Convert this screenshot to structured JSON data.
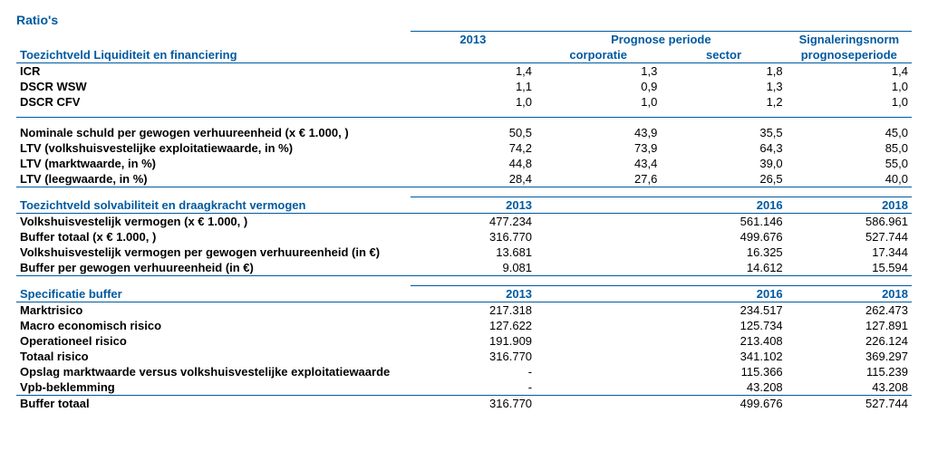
{
  "titles": {
    "ratios": "Ratio's",
    "section1": "Toezichtveld Liquiditeit en financiering",
    "section2": "Toezichtveld solvabiliteit en draagkracht vermogen",
    "section3": "Specificatie buffer"
  },
  "headers": {
    "y2013": "2013",
    "prognose": "Prognose periode",
    "corporatie": "corporatie",
    "sector": "sector",
    "signalering": "Signaleringsnorm",
    "prognoseperiode": "prognoseperiode",
    "y2016": "2016",
    "y2018": "2018"
  },
  "s1rows": [
    {
      "label": "ICR",
      "c1": "1,4",
      "c2": "1,3",
      "c3": "1,8",
      "c4": "1,4"
    },
    {
      "label": "DSCR WSW",
      "c1": "1,1",
      "c2": "0,9",
      "c3": "1,3",
      "c4": "1,0"
    },
    {
      "label": "DSCR CFV",
      "c1": "1,0",
      "c2": "1,0",
      "c3": "1,2",
      "c4": "1,0"
    }
  ],
  "s1rows2": [
    {
      "label": "Nominale schuld per gewogen verhuureenheid (x € 1.000, )",
      "c1": "50,5",
      "c2": "43,9",
      "c3": "35,5",
      "c4": "45,0"
    },
    {
      "label": "LTV (volkshuisvestelijke exploitatiewaarde, in %)",
      "c1": "74,2",
      "c2": "73,9",
      "c3": "64,3",
      "c4": "85,0"
    },
    {
      "label": "LTV (marktwaarde, in %)",
      "c1": "44,8",
      "c2": "43,4",
      "c3": "39,0",
      "c4": "55,0"
    },
    {
      "label": "LTV (leegwaarde, in %)",
      "c1": "28,4",
      "c2": "27,6",
      "c3": "26,5",
      "c4": "40,0"
    }
  ],
  "s2rows": [
    {
      "label": "Volkshuisvestelijk vermogen (x € 1.000, )",
      "c1": "477.234",
      "c2": "561.146",
      "c3": "586.961"
    },
    {
      "label": "Buffer totaal (x € 1.000, )",
      "c1": "316.770",
      "c2": "499.676",
      "c3": "527.744"
    },
    {
      "label": "Volkshuisvestelijk vermogen per gewogen verhuureenheid (in €)",
      "c1": "13.681",
      "c2": "16.325",
      "c3": "17.344"
    },
    {
      "label": "Buffer per gewogen verhuureenheid (in €)",
      "c1": "9.081",
      "c2": "14.612",
      "c3": "15.594"
    }
  ],
  "s3rows": [
    {
      "label": "Marktrisico",
      "c1": "217.318",
      "c2": "234.517",
      "c3": "262.473"
    },
    {
      "label": "Macro economisch risico",
      "c1": "127.622",
      "c2": "125.734",
      "c3": "127.891"
    },
    {
      "label": "Operationeel risico",
      "c1": "191.909",
      "c2": "213.408",
      "c3": "226.124"
    },
    {
      "label": "Totaal risico",
      "c1": "316.770",
      "c2": "341.102",
      "c3": "369.297"
    },
    {
      "label": "Opslag marktwaarde versus volkshuisvestelijke exploitatiewaarde",
      "c1": "-",
      "c2": "115.366",
      "c3": "115.239"
    },
    {
      "label": "Vpb-beklemming",
      "c1": "-",
      "c2": "43.208",
      "c3": "43.208"
    },
    {
      "label": "Buffer totaal",
      "c1": "316.770",
      "c2": "499.676",
      "c3": "527.744"
    }
  ]
}
